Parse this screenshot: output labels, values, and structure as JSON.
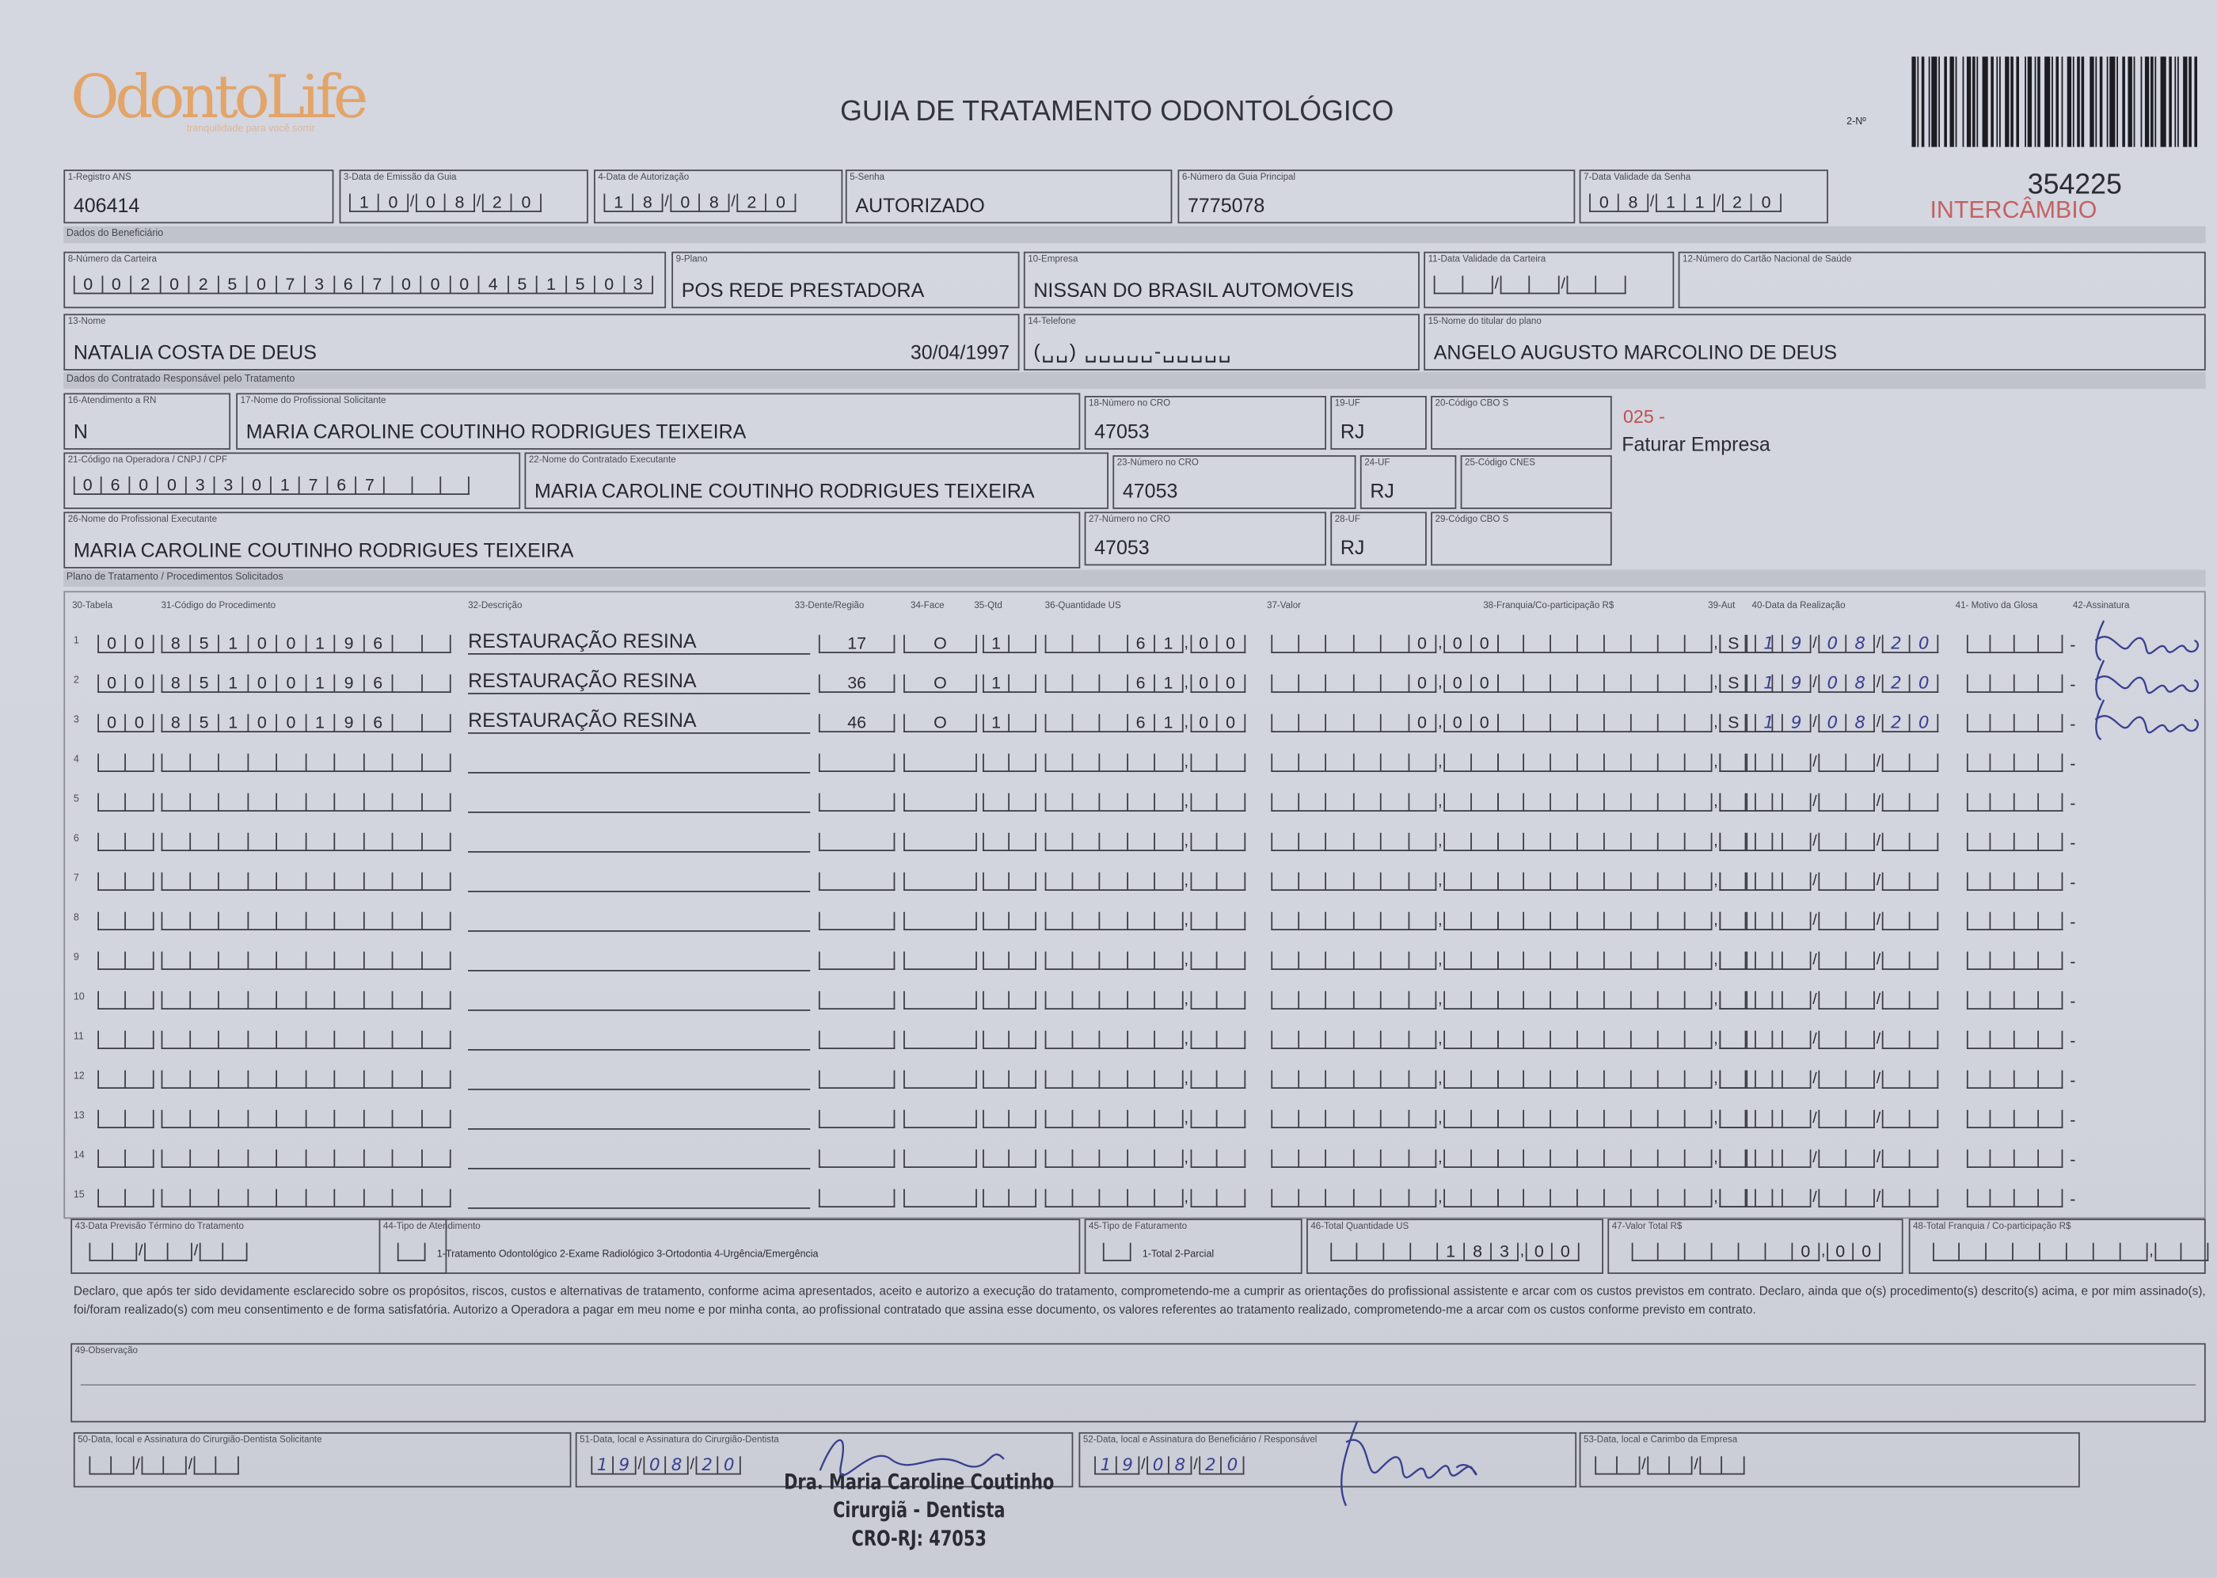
{
  "header": {
    "logo": "OdontoLife",
    "logo_tagline": "tranquilidade para você sorrir",
    "title": "GUIA DE TRATAMENTO ODONTOLÓGICO",
    "guide_no_label": "2-Nº",
    "guide_number": "354225",
    "stamp": "INTERCÂMBIO"
  },
  "sections": {
    "beneficiary": "Dados do Beneficiário",
    "contracted": "Dados do Contratado Responsável pelo Tratamento",
    "plan": "Plano de Tratamento / Procedimentos Solicitados"
  },
  "fields": {
    "f1": {
      "label": "1-Registro ANS",
      "value": "406414"
    },
    "f3": {
      "label": "3-Data de Emissão da Guia",
      "value": "10/08/20"
    },
    "f4": {
      "label": "4-Data de Autorização",
      "value": "18/08/20"
    },
    "f5": {
      "label": "5-Senha",
      "value": "AUTORIZADO"
    },
    "f6": {
      "label": "6-Número da Guia Principal",
      "value": "7775078"
    },
    "f7": {
      "label": "7-Data Validade da Senha",
      "value": "08/11/20"
    },
    "f8": {
      "label": "8-Número da Carteira",
      "value": "00202507367000451503"
    },
    "f9": {
      "label": "9-Plano",
      "value": "POS REDE PRESTADORA"
    },
    "f10": {
      "label": "10-Empresa",
      "value": "NISSAN DO BRASIL AUTOMOVEIS"
    },
    "f11": {
      "label": "11-Data Validade da Carteira",
      "value": ""
    },
    "f12": {
      "label": "12-Número do Cartão Nacional de Saúde",
      "value": ""
    },
    "f13": {
      "label": "13-Nome",
      "value": "NATALIA COSTA DE DEUS",
      "birth_date": "30/04/1997"
    },
    "f14": {
      "label": "14-Telefone",
      "value": ""
    },
    "f15": {
      "label": "15-Nome do titular do plano",
      "value": "ANGELO AUGUSTO MARCOLINO DE DEUS"
    },
    "f16": {
      "label": "16-Atendimento a RN",
      "value": "N"
    },
    "f17": {
      "label": "17-Nome do Profissional Solicitante",
      "value": "MARIA CAROLINE COUTINHO RODRIGUES TEIXEIRA"
    },
    "f18": {
      "label": "18-Número no CRO",
      "value": "47053"
    },
    "f19": {
      "label": "19-UF",
      "value": "RJ"
    },
    "f20": {
      "label": "20-Código CBO S",
      "value": ""
    },
    "f21": {
      "label": "21-Código na Operadora / CNPJ / CPF",
      "value": "06003301767"
    },
    "f22": {
      "label": "22-Nome do Contratado Executante",
      "value": "MARIA CAROLINE COUTINHO RODRIGUES TEIXEIRA"
    },
    "f23": {
      "label": "23-Número no CRO",
      "value": "47053"
    },
    "f24": {
      "label": "24-UF",
      "value": "RJ"
    },
    "f25": {
      "label": "25-Código CNES",
      "value": ""
    },
    "f26": {
      "label": "26-Nome do Profissional Executante",
      "value": "MARIA CAROLINE COUTINHO RODRIGUES TEIXEIRA"
    },
    "f27": {
      "label": "27-Número no CRO",
      "value": "47053"
    },
    "f28": {
      "label": "28-UF",
      "value": "RJ"
    },
    "f29": {
      "label": "29-Código CBO S",
      "value": ""
    }
  },
  "billing_note": {
    "code": "025 -",
    "text": "Faturar Empresa",
    "color": "#c0504d"
  },
  "procedures": {
    "headers": {
      "tabela": "30-Tabela",
      "codigo": "31-Código do Procedimento",
      "descricao": "32-Descrição",
      "dente": "33-Dente/Região",
      "face": "34-Face",
      "qtd": "35-Qtd",
      "qtd_us": "36-Quantidade US",
      "valor": "37-Valor",
      "franquia": "38-Franquia/Co-participação R$",
      "aut": "39-Aut",
      "data": "40-Data da Realização",
      "motivo": "41- Motivo da Glosa",
      "assinatura": "42-Assinatura"
    },
    "rows": [
      {
        "n": "1",
        "tabela": "00",
        "codigo": "85100196",
        "descricao": "RESTAURAÇÃO RESINA",
        "dente": "17",
        "face": "O",
        "qtd": "1",
        "qtd_us": "61,00",
        "valor": "0,00",
        "franquia": "",
        "aut": "S",
        "data": "19/08/20",
        "motivo": "",
        "signed": true
      },
      {
        "n": "2",
        "tabela": "00",
        "codigo": "85100196",
        "descricao": "RESTAURAÇÃO RESINA",
        "dente": "36",
        "face": "O",
        "qtd": "1",
        "qtd_us": "61,00",
        "valor": "0,00",
        "franquia": "",
        "aut": "S",
        "data": "19/08/20",
        "motivo": "",
        "signed": true
      },
      {
        "n": "3",
        "tabela": "00",
        "codigo": "85100196",
        "descricao": "RESTAURAÇÃO RESINA",
        "dente": "46",
        "face": "O",
        "qtd": "1",
        "qtd_us": "61,00",
        "valor": "0,00",
        "franquia": "",
        "aut": "S",
        "data": "19/08/20",
        "motivo": "",
        "signed": true
      },
      {
        "n": "4"
      },
      {
        "n": "5"
      },
      {
        "n": "6"
      },
      {
        "n": "7"
      },
      {
        "n": "8"
      },
      {
        "n": "9"
      },
      {
        "n": "10"
      },
      {
        "n": "11"
      },
      {
        "n": "12"
      },
      {
        "n": "13"
      },
      {
        "n": "14"
      },
      {
        "n": "15"
      }
    ]
  },
  "totals": {
    "f43": {
      "label": "43-Data Previsão Término do Tratamento",
      "value": ""
    },
    "f44": {
      "label": "44-Tipo de Atendimento",
      "value": "",
      "options": "1-Tratamento Odontológico  2-Exame Radiológico  3-Ortodontia  4-Urgência/Emergência"
    },
    "f45": {
      "label": "45-Tipo de Faturamento",
      "value": "",
      "options": "1-Total  2-Parcial"
    },
    "f46": {
      "label": "46-Total Quantidade US",
      "value": "183,00"
    },
    "f47": {
      "label": "47-Valor Total R$",
      "value": "0,00"
    },
    "f48": {
      "label": "48-Total Franquia / Co-participação R$",
      "value": ""
    }
  },
  "declaration": "Declaro, que após ter sido devidamente esclarecido sobre os propósitos, riscos, custos e alternativas de tratamento, conforme acima apresentados, aceito e autorizo a execução do tratamento, comprometendo-me a cumprir as orientações do profissional assistente e arcar com os custos previstos em contrato. Declaro, ainda que o(s) procedimento(s) descrito(s) acima, e por mim assinado(s), foi/foram realizado(s) com meu consentimento e de forma satisfatória. Autorizo a Operadora a pagar em meu nome e por minha conta, ao profissional contratado que assina esse documento, os valores referentes ao tratamento realizado, comprometendo-me a arcar com os custos conforme previsto em contrato.",
  "observation": {
    "label": "49-Observação",
    "value": ""
  },
  "signatures": {
    "f50": {
      "label": "50-Data, local e Assinatura do Cirurgião-Dentista Solicitante",
      "value": ""
    },
    "f51": {
      "label": "51-Data, local e Assinatura do Cirurgião-Dentista",
      "value": "19/08/20"
    },
    "f52": {
      "label": "52-Data, local e Assinatura do Beneficiário / Responsável",
      "value": "19/08/20"
    },
    "f53": {
      "label": "53-Data, local e Carimbo da Empresa",
      "value": ""
    }
  },
  "dentist_stamp": {
    "name": "Dra. Maria Caroline Coutinho",
    "title": "Cirurgiã - Dentista",
    "cro": "CRO-RJ: 47053"
  },
  "colors": {
    "ink": "#2b2c33",
    "paper": "#d2d4de",
    "logo": "#e2a468",
    "stamp_red": "#c0504d",
    "pen_blue": "#3a3f8f"
  }
}
